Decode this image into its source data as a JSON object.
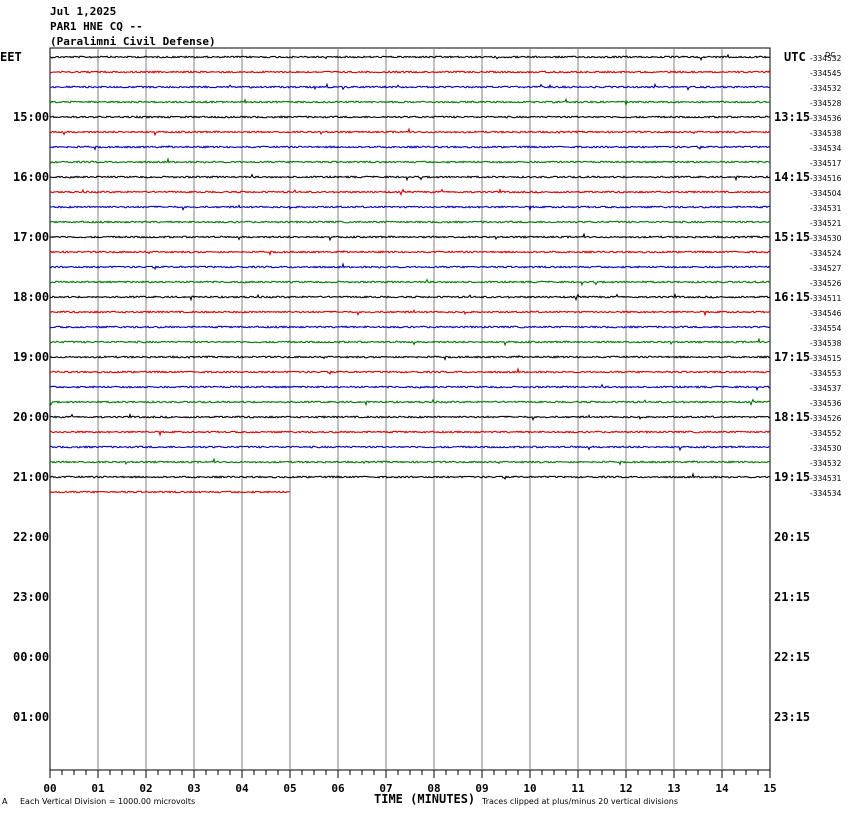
{
  "header": {
    "date": "Jul 1,2025",
    "station": "PAR1 HNE CQ --",
    "agency": "(Paralimni Civil Defense)"
  },
  "axes": {
    "left_tz": "EET",
    "right_tz": "UTC",
    "dc_label": "DC",
    "left_hours": [
      "15:00",
      "16:00",
      "17:00",
      "18:00",
      "19:00",
      "20:00",
      "21:00",
      "22:00",
      "23:00",
      "00:00",
      "01:00"
    ],
    "right_hours": [
      "13:15",
      "14:15",
      "15:15",
      "16:15",
      "17:15",
      "18:15",
      "19:15",
      "20:15",
      "21:15",
      "22:15",
      "23:15"
    ],
    "x_ticks": [
      "00",
      "01",
      "02",
      "03",
      "04",
      "05",
      "06",
      "07",
      "08",
      "09",
      "10",
      "11",
      "12",
      "13",
      "14",
      "15"
    ],
    "x_label": "TIME (MINUTES)"
  },
  "footer": {
    "left_mark": "A",
    "scale": "Each Vertical Division = 1000.00 microvolts",
    "clip": "Traces clipped at plus/minus 20 vertical divisions"
  },
  "colors": [
    "#000000",
    "#d40000",
    "#0000b4",
    "#007800"
  ],
  "chart_data": {
    "type": "line",
    "x_range_minutes": [
      0,
      15
    ],
    "trace_interval_minutes": 15,
    "dc_offsets": [
      "-334532",
      "-334545",
      "-334532",
      "-334528",
      "-334536",
      "-334538",
      "-334534",
      "-334517",
      "-334516",
      "-334504",
      "-334531",
      "-334521",
      "-334530",
      "-334524",
      "-334527",
      "-334526",
      "-334511",
      "-334546",
      "-334554",
      "-334538",
      "-334515",
      "-334553",
      "-334537",
      "-334536",
      "-334526",
      "-334552",
      "-334530",
      "-334532",
      "-334531",
      "-334534"
    ],
    "last_trace_end_minute": 5
  }
}
